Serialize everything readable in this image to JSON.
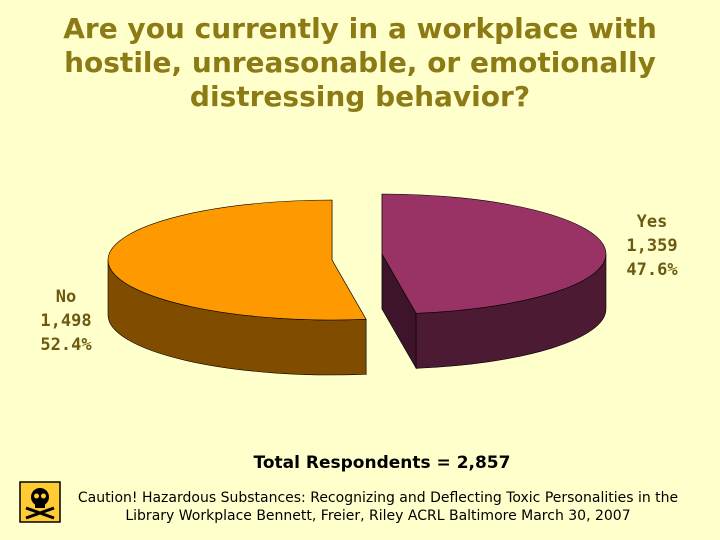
{
  "chart_data": {
    "type": "pie",
    "title": [
      "Are you currently in a workplace with",
      "hostile, unreasonable, or emotionally",
      "distressing behavior?"
    ],
    "categories": [
      "Yes",
      "No"
    ],
    "values": [
      1359,
      1498
    ],
    "value_labels": [
      "1,359",
      "1,498"
    ],
    "percents": [
      47.6,
      52.4
    ],
    "percent_labels": [
      "47.6%",
      "52.4%"
    ],
    "colors": [
      "#993366",
      "#ff9900"
    ],
    "annotation": "Total Respondents = 2,857",
    "footnote": [
      "Caution!  Hazardous Substances: Recognizing and Deflecting Toxic Personalities in the",
      "Library Workplace    Bennett, Freier, Riley      ACRL Baltimore     March 30, 2007"
    ]
  }
}
